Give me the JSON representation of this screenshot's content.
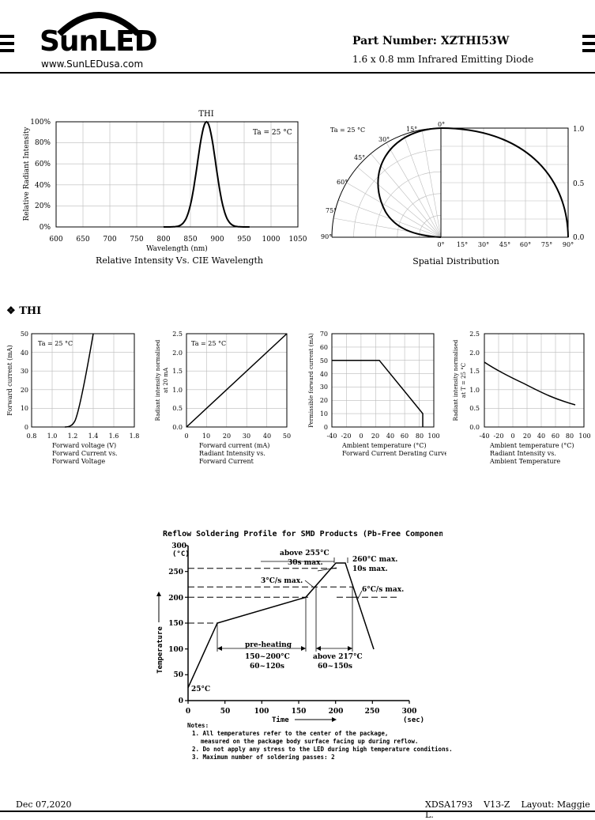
{
  "header": {
    "logo_text": "SunLED",
    "website": "www.SunLEDusa.com",
    "part_label": "Part Number: XZTHI53W",
    "subtitle": "1.6 x 0.8 mm Infrared Emitting Diode"
  },
  "section": {
    "title": "THI"
  },
  "spectrum_chart": {
    "series_label": "THI",
    "condition": "Ta = 25 °C",
    "xlabel": "Wavelength (nm)",
    "ylabel": "Relative Radiant Intensity",
    "caption": "Relative Intensity Vs. CIE Wavelength",
    "xticks": [
      "600",
      "650",
      "700",
      "750",
      "800",
      "850",
      "900",
      "950",
      "1000",
      "1050"
    ],
    "yticks": [
      "0%",
      "20%",
      "40%",
      "60%",
      "80%",
      "100%"
    ]
  },
  "spatial_chart": {
    "condition": "Ta = 25 °C",
    "caption": "Spatial Distribution",
    "angle_labels": [
      "0°",
      "15°",
      "30°",
      "45°",
      "60°",
      "75°",
      "90°"
    ],
    "bottom_labels": [
      "0°",
      "15°",
      "30°",
      "45°",
      "60°",
      "75°",
      "90°"
    ],
    "right_labels": [
      "1.0",
      "0.5",
      "0.0"
    ]
  },
  "fv_chart": {
    "condition": "Ta = 25 °C",
    "ylabel": "Forward current (mA)",
    "xlabel": "Forward voltage (V)",
    "caption1": "Forward Current vs.",
    "caption2": "Forward Voltage",
    "xticks": [
      "0.8",
      "1.0",
      "1.2",
      "1.4",
      "1.6",
      "1.8"
    ],
    "yticks": [
      "0",
      "10",
      "20",
      "30",
      "40",
      "50"
    ]
  },
  "ri_chart": {
    "condition": "Ta = 25 °C",
    "ylabel1": "Radiant intensity normalised",
    "ylabel2": "at 20 mA",
    "xlabel": "Forward current (mA)",
    "caption1": "Radiant Intensity vs.",
    "caption2": "Forward Current",
    "xticks": [
      "0",
      "10",
      "20",
      "30",
      "40",
      "50"
    ],
    "yticks": [
      "0.0",
      "0.5",
      "1.0",
      "1.5",
      "2.0",
      "2.5"
    ]
  },
  "derating_chart": {
    "ylabel": "Permissible forward current (mA)",
    "xlabel": "Ambient temperature (°C)",
    "caption": "Forward Current Derating Curve",
    "xticks": [
      "-40",
      "-20",
      "0",
      "20",
      "40",
      "60",
      "80",
      "100"
    ],
    "yticks": [
      "0",
      "10",
      "20",
      "30",
      "40",
      "50",
      "60",
      "70"
    ]
  },
  "ri_temp_chart": {
    "ylabel1": "Radiant intensity normalised",
    "ylabel2": "at T = 25 °C",
    "xlabel": "Ambient temperature (°C)",
    "caption1": "Radiant Intensity vs.",
    "caption2": "Ambient Temperature",
    "xticks": [
      "-40",
      "-20",
      "0",
      "20",
      "40",
      "60",
      "80",
      "100"
    ],
    "yticks": [
      "0.0",
      "0.5",
      "1.0",
      "1.5",
      "2.0",
      "2.5"
    ]
  },
  "reflow": {
    "title": "Reflow Soldering Profile for SMD Products (Pb-Free Components)",
    "yunit": "(°C)",
    "ylabel": "Temperature",
    "xlabel": "Time",
    "xunit": "(sec)",
    "yticks": [
      "0",
      "50",
      "100",
      "150",
      "200",
      "250",
      "300"
    ],
    "xticks": [
      "0",
      "50",
      "100",
      "150",
      "200",
      "250",
      "300"
    ],
    "ann_255": "above 255°C",
    "ann_30s": "30s max.",
    "ann_260": "260°C max.",
    "ann_10s": "10s max.",
    "ann_3cs": "3°C/s max.",
    "ann_6cs": "6°C/s max.",
    "ann_25": "25°C",
    "ann_preheat": "pre-heating",
    "ann_preheat_t": "150~200°C",
    "ann_preheat_s": "60~120s",
    "ann_217": "above 217°C",
    "ann_217_s": "60~150s"
  },
  "notes": {
    "title": "Notes:",
    "items": [
      "1. All temperatures refer to the center of the package,",
      "measured on the package body surface facing up during reflow.",
      "2. Do not apply any stress to the LED during high temperature conditions.",
      "3. Maximum number of soldering passes: 2"
    ]
  },
  "footer": {
    "date": "Dec 07,2020",
    "doc": "XDSA1793",
    "version": "V13-Z",
    "layout": "Layout: Maggie L."
  }
}
